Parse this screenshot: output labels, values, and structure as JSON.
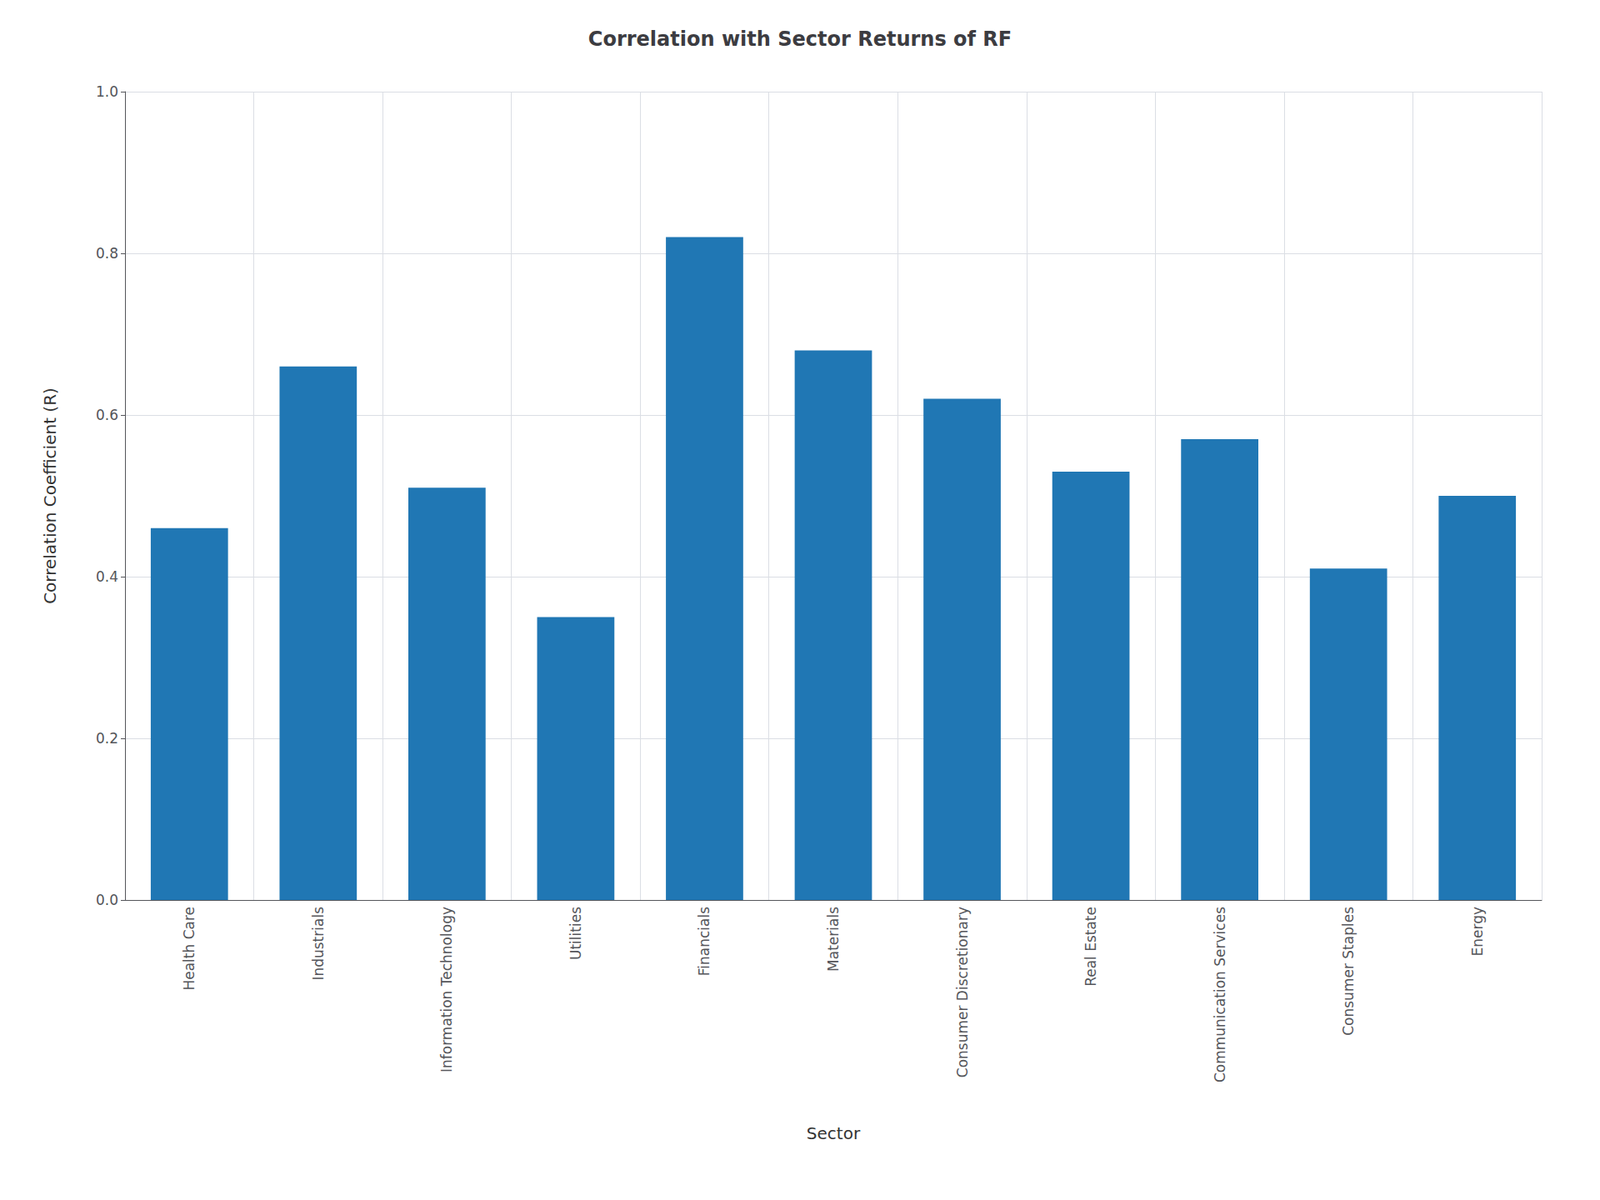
{
  "chart_data": {
    "type": "bar",
    "title": "Correlation with Sector Returns of RF",
    "xlabel": "Sector",
    "ylabel": "Correlation Coefficient (R)",
    "categories": [
      "Health Care",
      "Industrials",
      "Information Technology",
      "Utilities",
      "Financials",
      "Materials",
      "Consumer Discretionary",
      "Real Estate",
      "Communication Services",
      "Consumer Staples",
      "Energy"
    ],
    "values": [
      0.46,
      0.66,
      0.51,
      0.35,
      0.82,
      0.68,
      0.62,
      0.53,
      0.57,
      0.41,
      0.5
    ],
    "color": "#2077b4",
    "ylim": [
      0.0,
      1.0
    ],
    "yticks": [
      {
        "value": 0,
        "label": "0.0"
      },
      0.2,
      0.4,
      0.6,
      0.8,
      {
        "value": 1,
        "label": "1.0"
      }
    ],
    "grid": true
  }
}
